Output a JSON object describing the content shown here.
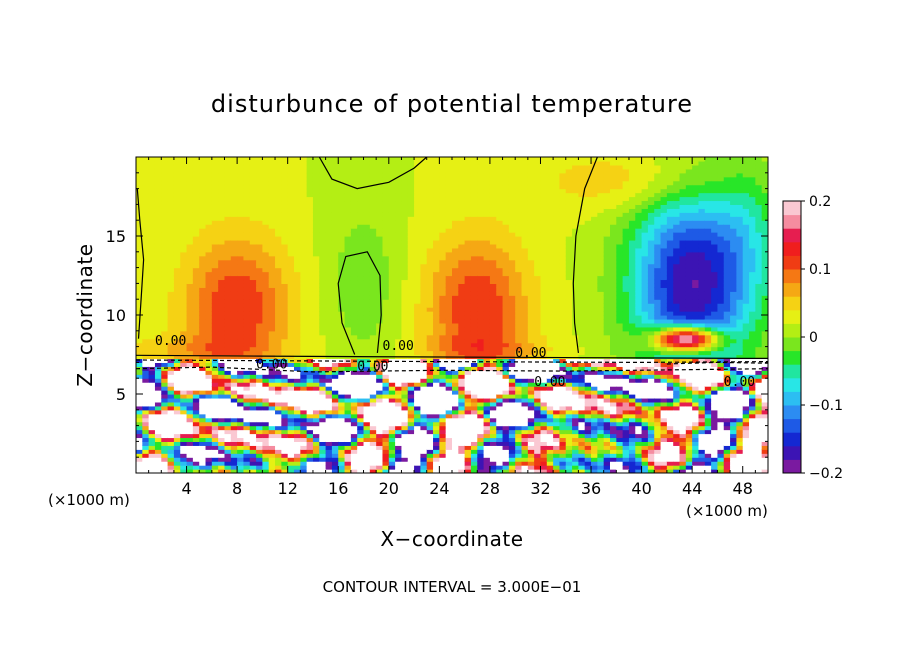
{
  "chart_data": {
    "type": "heatmap",
    "title": "disturbunce of potential temperature",
    "xlabel": "X−coordinate",
    "ylabel": "Z−coordinate",
    "x_unit": "(×1000 m)",
    "y_unit": "(×1000 m)",
    "xlim": [
      0,
      50
    ],
    "ylim": [
      0,
      20
    ],
    "x_ticks": [
      4,
      8,
      12,
      16,
      20,
      24,
      28,
      32,
      36,
      40,
      44,
      48
    ],
    "y_ticks": [
      5,
      10,
      15
    ],
    "colorbar": {
      "range": [
        -0.2,
        0.2
      ],
      "tick_values": [
        0.2,
        0.1,
        0,
        -0.1,
        -0.2
      ],
      "tick_labels": [
        "0.2",
        "0.1",
        "0",
        "−0.1",
        "−0.2"
      ],
      "colors": [
        "#7a1aa0",
        "#3c14b4",
        "#1428d2",
        "#1e5ae6",
        "#2c8cf2",
        "#2cbef2",
        "#28e6e6",
        "#20e6a0",
        "#28e628",
        "#7ae61e",
        "#b4ee14",
        "#e6f014",
        "#f5d214",
        "#f5a814",
        "#f57814",
        "#f03c14",
        "#f01e1e",
        "#e61e50",
        "#f58ca0",
        "#fac8d2"
      ]
    },
    "contour_labels": [
      "0.00",
      "0.00",
      "0.00",
      "0.00",
      "0.00",
      "0.00",
      "0.00"
    ],
    "footer": "CONTOUR INTERVAL = 3.000E−01"
  }
}
